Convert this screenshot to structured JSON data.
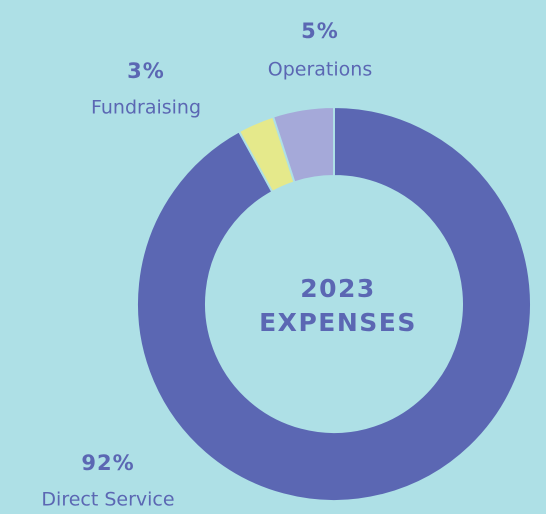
{
  "chart_data": {
    "type": "pie",
    "title": "2023 EXPENSES",
    "categories": [
      "Direct Service",
      "Fundraising",
      "Operations"
    ],
    "values": [
      92,
      3,
      5
    ],
    "value_labels": [
      "92%",
      "3%",
      "5%"
    ],
    "colors": [
      "#5b67b3",
      "#e5e98b",
      "#a5a9d9"
    ]
  }
}
